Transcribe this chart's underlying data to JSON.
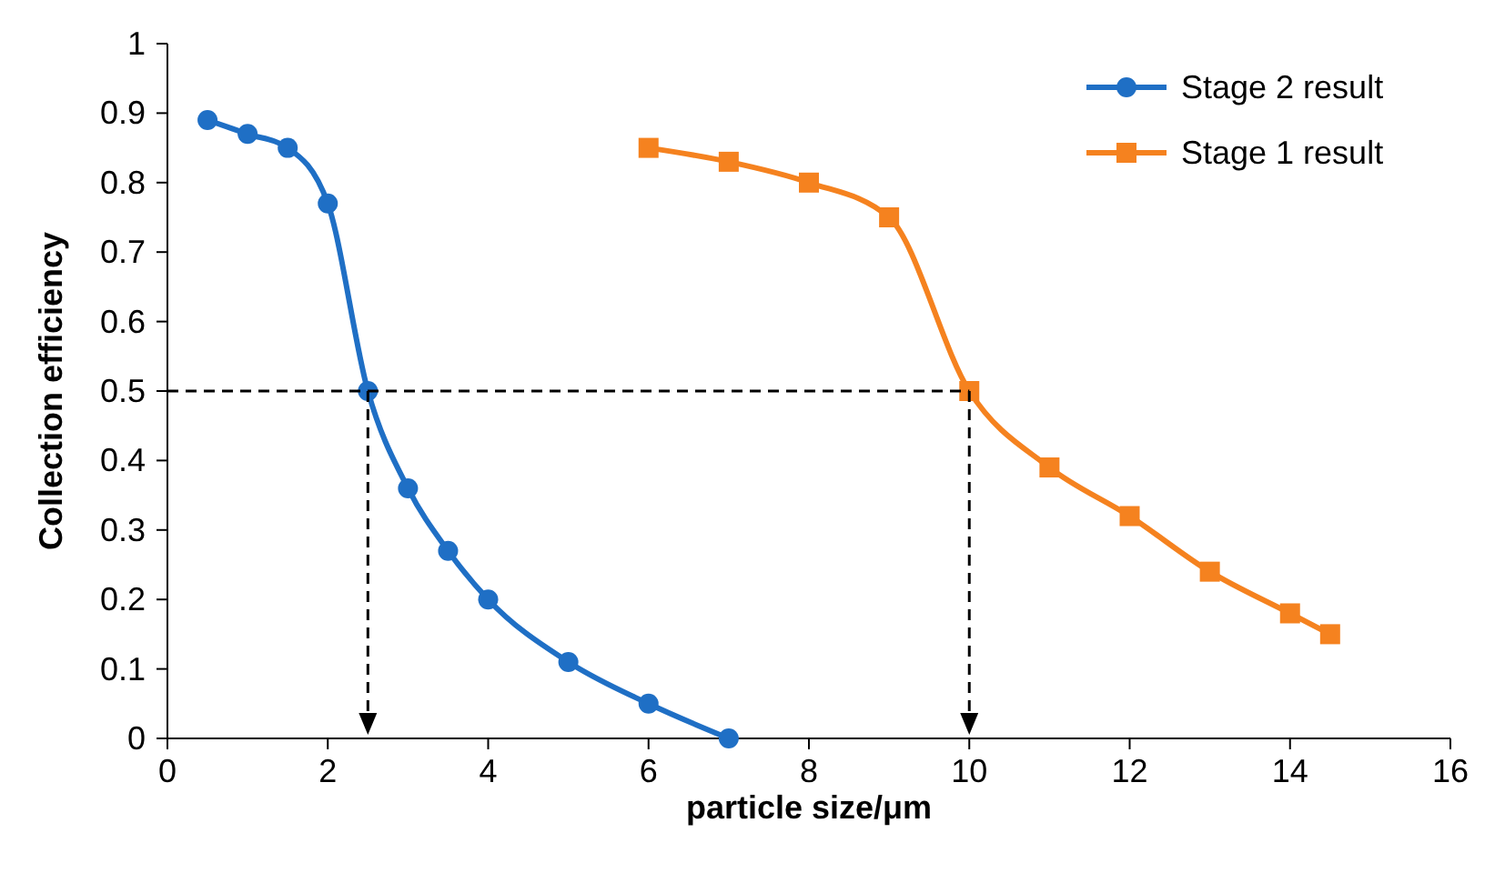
{
  "chart_data": {
    "type": "line",
    "xlabel": "particle size/μm",
    "ylabel": "Collection efficiency",
    "xlim": [
      0,
      16
    ],
    "xticks": [
      0,
      2,
      4,
      6,
      8,
      10,
      12,
      14,
      16
    ],
    "ylim": [
      0,
      1
    ],
    "yticks": [
      0,
      0.1,
      0.2,
      0.3,
      0.4,
      0.5,
      0.6,
      0.7,
      0.8,
      0.9,
      1
    ],
    "grid": false,
    "legend": "top right",
    "line_style": "solid",
    "series": [
      {
        "name": "Stage 2 result",
        "color": "#1f6fc5",
        "marker": "circle",
        "x": [
          0.5,
          1,
          1.5,
          2,
          2.5,
          3,
          3.5,
          4,
          5,
          6,
          7
        ],
        "values": [
          0.89,
          0.87,
          0.85,
          0.77,
          0.5,
          0.36,
          0.27,
          0.2,
          0.11,
          0.05,
          0
        ]
      },
      {
        "name": "Stage 1 result",
        "color": "#f5821f",
        "marker": "square",
        "x": [
          6,
          7,
          8,
          9,
          10,
          11,
          12,
          13,
          14,
          14.5
        ],
        "values": [
          0.85,
          0.83,
          0.8,
          0.75,
          0.5,
          0.39,
          0.32,
          0.24,
          0.18,
          0.15
        ]
      }
    ],
    "ref_lines": [
      {
        "axis": "y",
        "value": 0.5,
        "color": "#000000",
        "line_style": "dashed"
      },
      {
        "axis": "x",
        "value": 2.5,
        "color": "#000000",
        "line_style": "dashed"
      },
      {
        "axis": "x",
        "value": 10,
        "color": "#000000",
        "line_style": "dashed"
      }
    ]
  }
}
